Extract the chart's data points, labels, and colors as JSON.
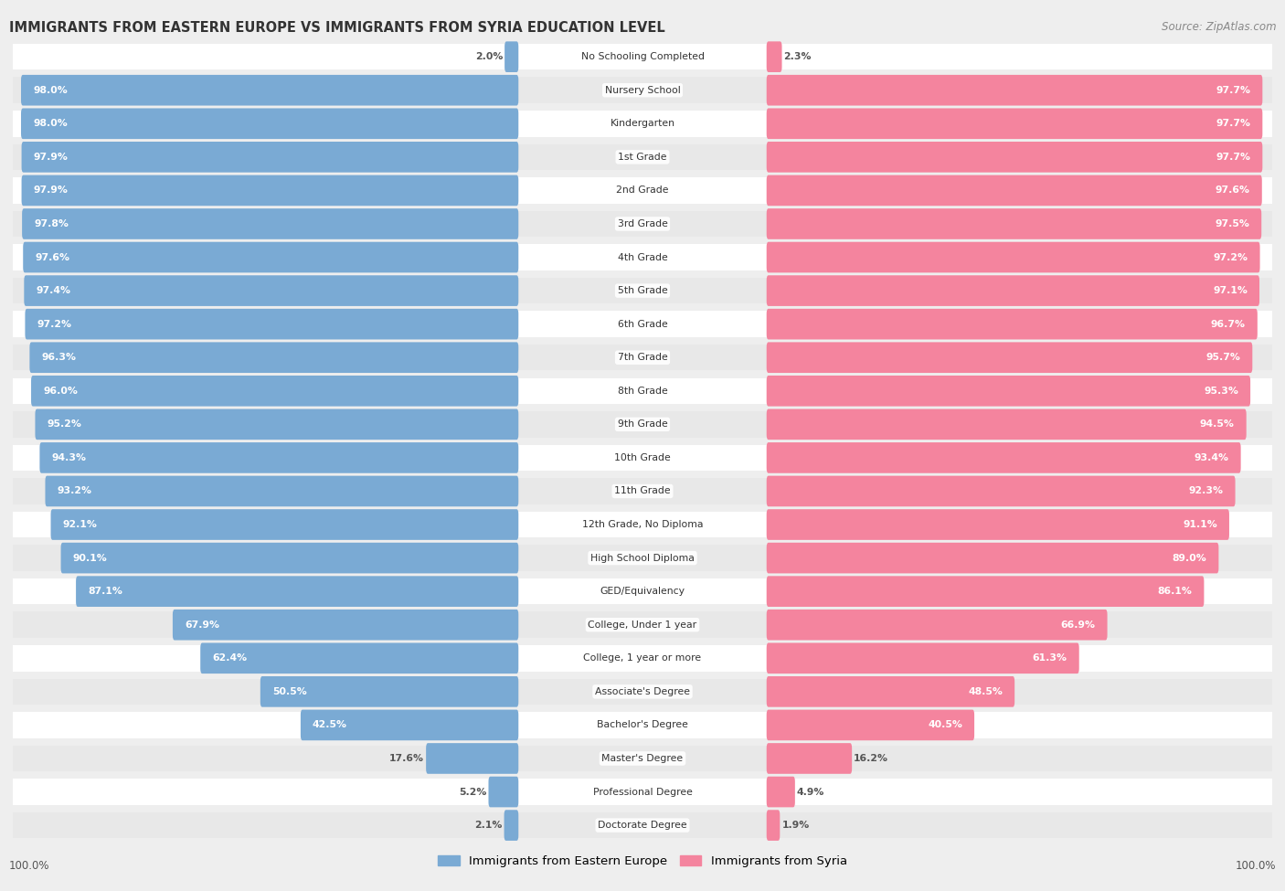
{
  "title": "IMMIGRANTS FROM EASTERN EUROPE VS IMMIGRANTS FROM SYRIA EDUCATION LEVEL",
  "source": "Source: ZipAtlas.com",
  "categories": [
    "No Schooling Completed",
    "Nursery School",
    "Kindergarten",
    "1st Grade",
    "2nd Grade",
    "3rd Grade",
    "4th Grade",
    "5th Grade",
    "6th Grade",
    "7th Grade",
    "8th Grade",
    "9th Grade",
    "10th Grade",
    "11th Grade",
    "12th Grade, No Diploma",
    "High School Diploma",
    "GED/Equivalency",
    "College, Under 1 year",
    "College, 1 year or more",
    "Associate's Degree",
    "Bachelor's Degree",
    "Master's Degree",
    "Professional Degree",
    "Doctorate Degree"
  ],
  "eastern_europe": [
    2.0,
    98.0,
    98.0,
    97.9,
    97.9,
    97.8,
    97.6,
    97.4,
    97.2,
    96.3,
    96.0,
    95.2,
    94.3,
    93.2,
    92.1,
    90.1,
    87.1,
    67.9,
    62.4,
    50.5,
    42.5,
    17.6,
    5.2,
    2.1
  ],
  "syria": [
    2.3,
    97.7,
    97.7,
    97.7,
    97.6,
    97.5,
    97.2,
    97.1,
    96.7,
    95.7,
    95.3,
    94.5,
    93.4,
    92.3,
    91.1,
    89.0,
    86.1,
    66.9,
    61.3,
    48.5,
    40.5,
    16.2,
    4.9,
    1.9
  ],
  "blue_color": "#7aaad4",
  "pink_color": "#f4849e",
  "bg_color": "#eeeeee",
  "bar_bg_color": "#ffffff",
  "row_alt_color": "#e8e8e8",
  "legend_blue": "Immigrants from Eastern Europe",
  "legend_pink": "Immigrants from Syria",
  "axis_label_left": "100.0%",
  "axis_label_right": "100.0%"
}
